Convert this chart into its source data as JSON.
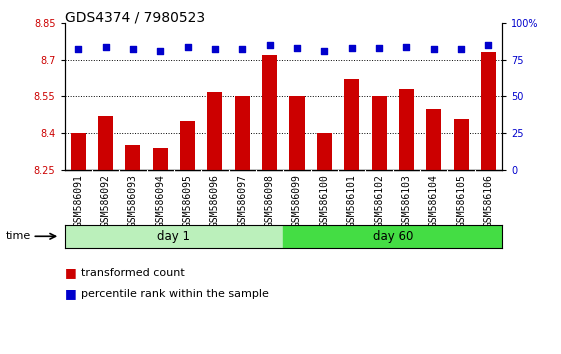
{
  "title": "GDS4374 / 7980523",
  "samples": [
    "GSM586091",
    "GSM586092",
    "GSM586093",
    "GSM586094",
    "GSM586095",
    "GSM586096",
    "GSM586097",
    "GSM586098",
    "GSM586099",
    "GSM586100",
    "GSM586101",
    "GSM586102",
    "GSM586103",
    "GSM586104",
    "GSM586105",
    "GSM586106"
  ],
  "day1_samples": 8,
  "day60_samples": 8,
  "bar_values": [
    8.4,
    8.47,
    8.35,
    8.34,
    8.45,
    8.57,
    8.55,
    8.72,
    8.55,
    8.4,
    8.62,
    8.55,
    8.58,
    8.5,
    8.46,
    8.73
  ],
  "scatter_values": [
    82,
    84,
    82,
    81,
    84,
    82,
    82,
    85,
    83,
    81,
    83,
    83,
    84,
    82,
    82,
    85
  ],
  "bar_color": "#cc0000",
  "scatter_color": "#0000cc",
  "ylim_left": [
    8.25,
    8.85
  ],
  "ylim_right": [
    0,
    100
  ],
  "yticks_left": [
    8.25,
    8.4,
    8.55,
    8.7,
    8.85
  ],
  "yticks_right": [
    0,
    25,
    50,
    75,
    100
  ],
  "grid_values": [
    8.4,
    8.55,
    8.7
  ],
  "day1_label": "day 1",
  "day60_label": "day 60",
  "time_label": "time",
  "legend_bar": "transformed count",
  "legend_scatter": "percentile rank within the sample",
  "day1_color": "#bbf0bb",
  "day60_color": "#44dd44",
  "tick_label_fontsize": 7.0,
  "title_fontsize": 10,
  "bar_width": 0.55
}
